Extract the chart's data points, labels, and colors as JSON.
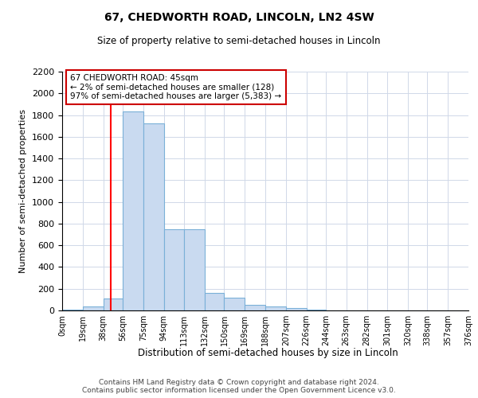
{
  "title1": "67, CHEDWORTH ROAD, LINCOLN, LN2 4SW",
  "title2": "Size of property relative to semi-detached houses in Lincoln",
  "xlabel": "Distribution of semi-detached houses by size in Lincoln",
  "ylabel": "Number of semi-detached properties",
  "bar_edges": [
    0,
    19,
    38,
    56,
    75,
    94,
    113,
    132,
    150,
    169,
    188,
    207,
    226,
    244,
    263,
    282,
    301,
    320,
    338,
    357,
    376
  ],
  "bar_heights": [
    10,
    35,
    110,
    1830,
    1720,
    750,
    745,
    165,
    120,
    55,
    35,
    20,
    5,
    3,
    0,
    0,
    0,
    0,
    0,
    0
  ],
  "bar_color": "#c9daf0",
  "bar_edge_color": "#7ab0d8",
  "grid_color": "#d0d8e8",
  "red_line_x": 45,
  "ylim": [
    0,
    2200
  ],
  "yticks": [
    0,
    200,
    400,
    600,
    800,
    1000,
    1200,
    1400,
    1600,
    1800,
    2000,
    2200
  ],
  "annotation_title": "67 CHEDWORTH ROAD: 45sqm",
  "annotation_line1": "← 2% of semi-detached houses are smaller (128)",
  "annotation_line2": "97% of semi-detached houses are larger (5,383) →",
  "annotation_box_color": "#ffffff",
  "annotation_box_edge": "#cc0000",
  "footer1": "Contains HM Land Registry data © Crown copyright and database right 2024.",
  "footer2": "Contains public sector information licensed under the Open Government Licence v3.0.",
  "bg_color": "#ffffff",
  "tick_labels": [
    "0sqm",
    "19sqm",
    "38sqm",
    "56sqm",
    "75sqm",
    "94sqm",
    "113sqm",
    "132sqm",
    "150sqm",
    "169sqm",
    "188sqm",
    "207sqm",
    "226sqm",
    "244sqm",
    "263sqm",
    "282sqm",
    "301sqm",
    "320sqm",
    "338sqm",
    "357sqm",
    "376sqm"
  ]
}
